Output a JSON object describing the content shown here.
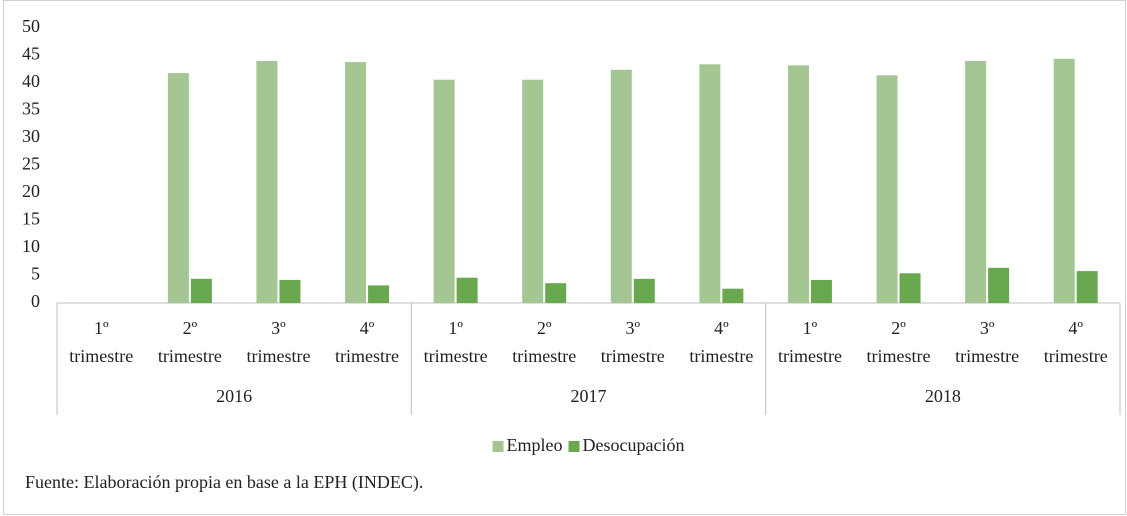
{
  "chart_data": {
    "type": "bar",
    "category_groups": [
      "2016",
      "2017",
      "2018"
    ],
    "categories": [
      "1º trimestre",
      "2º trimestre",
      "3º trimestre",
      "4º trimestre",
      "1º trimestre",
      "2º trimestre",
      "3º trimestre",
      "4º trimestre",
      "1º trimestre",
      "2º trimestre",
      "3º trimestre",
      "4º trimestre"
    ],
    "series": [
      {
        "name": "Empleo",
        "color": "#a3c693",
        "values": [
          null,
          41.8,
          44,
          43.8,
          40.6,
          40.6,
          42.4,
          43.4,
          43.2,
          41.4,
          44,
          44.4
        ]
      },
      {
        "name": "Desocupación",
        "color": "#6aa84f",
        "values": [
          null,
          4.4,
          4.2,
          3.2,
          4.6,
          3.6,
          4.4,
          2.6,
          4.2,
          5.4,
          6.4,
          5.8
        ]
      }
    ],
    "ylim": [
      0,
      50
    ],
    "yticks": [
      0,
      5,
      10,
      15,
      20,
      25,
      30,
      35,
      40,
      45,
      50
    ],
    "grid": false,
    "legend": "bottom",
    "source": "Fuente: Elaboración propia en base a la EPH (INDEC)."
  }
}
